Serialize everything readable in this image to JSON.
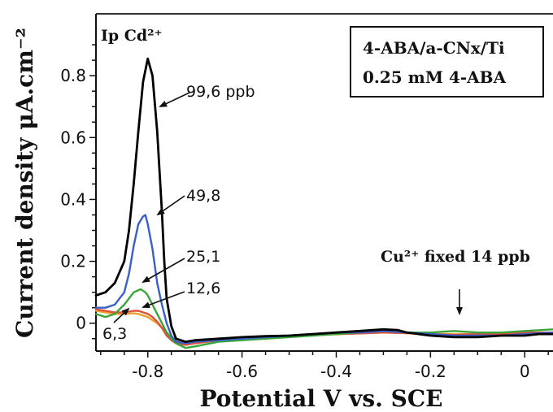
{
  "chart_data": {
    "type": "line",
    "title": "",
    "xlabel": "Potential V vs. SCE",
    "ylabel": "Current density μA.cm⁻²",
    "xlim": [
      -0.91,
      0.06
    ],
    "ylim": [
      -0.09,
      1.0
    ],
    "x_ticks": [
      -0.8,
      -0.6,
      -0.4,
      -0.2,
      0
    ],
    "x_tick_labels": [
      "-0.8",
      "-0.6",
      "-0.4",
      "-0.2",
      "0"
    ],
    "y_ticks": [
      0,
      0.2,
      0.4,
      0.6,
      0.8
    ],
    "y_tick_labels": [
      "0",
      "0.2",
      "0.4",
      "0.6",
      "0.8"
    ],
    "grid": false,
    "legend_box": {
      "position": "top-right",
      "lines": [
        "4-ABA/a-CNx/Ti",
        "0.25 mM 4-ABA"
      ]
    },
    "peak_label": "Ip Cd²⁺",
    "annotations": [
      {
        "text": "99,6 ppb",
        "series": "black",
        "x": -0.78,
        "y": 0.7
      },
      {
        "text": "49,8",
        "series": "blue",
        "x": -0.79,
        "y": 0.32
      },
      {
        "text": "25,1",
        "series": "green",
        "x": -0.8,
        "y": 0.1
      },
      {
        "text": "12,6",
        "series": "red",
        "x": -0.79,
        "y": 0.03
      },
      {
        "text": "6,3",
        "series": "orange",
        "x": -0.84,
        "y": 0.03
      },
      {
        "text": "Cu²⁺ fixed 14 ppb",
        "x": -0.14,
        "y": 0.0
      }
    ],
    "series": [
      {
        "color": "#000000",
        "x": [
          -0.91,
          -0.89,
          -0.87,
          -0.85,
          -0.84,
          -0.83,
          -0.82,
          -0.81,
          -0.8,
          -0.79,
          -0.78,
          -0.77,
          -0.765,
          -0.76,
          -0.75,
          -0.74,
          -0.72,
          -0.7,
          -0.65,
          -0.6,
          -0.55,
          -0.5,
          -0.45,
          -0.4,
          -0.35,
          -0.3,
          -0.27,
          -0.25,
          -0.2,
          -0.15,
          -0.1,
          -0.05,
          0.0,
          0.03,
          0.06
        ],
        "y": [
          0.09,
          0.1,
          0.13,
          0.2,
          0.3,
          0.45,
          0.62,
          0.78,
          0.855,
          0.8,
          0.62,
          0.36,
          0.2,
          0.08,
          -0.01,
          -0.05,
          -0.06,
          -0.055,
          -0.05,
          -0.045,
          -0.042,
          -0.04,
          -0.035,
          -0.03,
          -0.025,
          -0.02,
          -0.022,
          -0.03,
          -0.04,
          -0.045,
          -0.045,
          -0.04,
          -0.04,
          -0.035,
          -0.035
        ]
      },
      {
        "color": "#3a5fc8",
        "x": [
          -0.91,
          -0.89,
          -0.87,
          -0.85,
          -0.84,
          -0.83,
          -0.82,
          -0.81,
          -0.805,
          -0.8,
          -0.79,
          -0.78,
          -0.77,
          -0.76,
          -0.75,
          -0.74,
          -0.72,
          -0.7,
          -0.65,
          -0.6,
          -0.55,
          -0.5,
          -0.45,
          -0.4,
          -0.35,
          -0.3,
          -0.25,
          -0.2,
          -0.15,
          -0.1,
          -0.05,
          0.0,
          0.06
        ],
        "y": [
          0.05,
          0.05,
          0.06,
          0.1,
          0.16,
          0.25,
          0.32,
          0.345,
          0.35,
          0.32,
          0.24,
          0.13,
          0.06,
          0.0,
          -0.04,
          -0.06,
          -0.065,
          -0.06,
          -0.055,
          -0.05,
          -0.045,
          -0.04,
          -0.035,
          -0.03,
          -0.03,
          -0.025,
          -0.03,
          -0.035,
          -0.04,
          -0.04,
          -0.04,
          -0.035,
          -0.03
        ]
      },
      {
        "color": "#3aa63a",
        "x": [
          -0.91,
          -0.89,
          -0.87,
          -0.85,
          -0.83,
          -0.815,
          -0.805,
          -0.8,
          -0.79,
          -0.78,
          -0.77,
          -0.76,
          -0.75,
          -0.74,
          -0.72,
          -0.7,
          -0.65,
          -0.6,
          -0.55,
          -0.5,
          -0.45,
          -0.4,
          -0.35,
          -0.3,
          -0.25,
          -0.2,
          -0.15,
          -0.1,
          -0.05,
          0.0,
          0.06
        ],
        "y": [
          0.03,
          0.02,
          0.03,
          0.06,
          0.1,
          0.11,
          0.1,
          0.09,
          0.06,
          0.03,
          0.0,
          -0.03,
          -0.05,
          -0.065,
          -0.08,
          -0.075,
          -0.06,
          -0.055,
          -0.05,
          -0.045,
          -0.04,
          -0.035,
          -0.03,
          -0.025,
          -0.03,
          -0.03,
          -0.025,
          -0.03,
          -0.03,
          -0.025,
          -0.02
        ]
      },
      {
        "color": "#e0503a",
        "x": [
          -0.91,
          -0.89,
          -0.87,
          -0.85,
          -0.83,
          -0.82,
          -0.81,
          -0.8,
          -0.79,
          -0.78,
          -0.77,
          -0.76,
          -0.75,
          -0.74,
          -0.72,
          -0.7,
          -0.65,
          -0.6,
          -0.55,
          -0.5,
          -0.45,
          -0.4,
          -0.35,
          -0.3,
          -0.25,
          -0.2,
          -0.15,
          -0.1,
          -0.05,
          0.0,
          0.06
        ],
        "y": [
          0.045,
          0.04,
          0.035,
          0.035,
          0.04,
          0.04,
          0.035,
          0.03,
          0.02,
          0.005,
          -0.015,
          -0.04,
          -0.055,
          -0.065,
          -0.07,
          -0.065,
          -0.055,
          -0.05,
          -0.045,
          -0.04,
          -0.038,
          -0.035,
          -0.033,
          -0.03,
          -0.032,
          -0.035,
          -0.038,
          -0.035,
          -0.035,
          -0.03,
          -0.03
        ]
      },
      {
        "color": "#e8a030",
        "x": [
          -0.91,
          -0.89,
          -0.87,
          -0.85,
          -0.83,
          -0.82,
          -0.8,
          -0.78,
          -0.76,
          -0.74,
          -0.72,
          -0.7,
          -0.65,
          -0.6,
          -0.5,
          -0.4,
          -0.3,
          -0.2,
          -0.1,
          0.0,
          0.06
        ],
        "y": [
          0.04,
          0.035,
          0.03,
          0.03,
          0.032,
          0.03,
          0.02,
          0.0,
          -0.03,
          -0.055,
          -0.065,
          -0.06,
          -0.055,
          -0.05,
          -0.042,
          -0.036,
          -0.03,
          -0.035,
          -0.035,
          -0.032,
          -0.03
        ]
      }
    ]
  }
}
